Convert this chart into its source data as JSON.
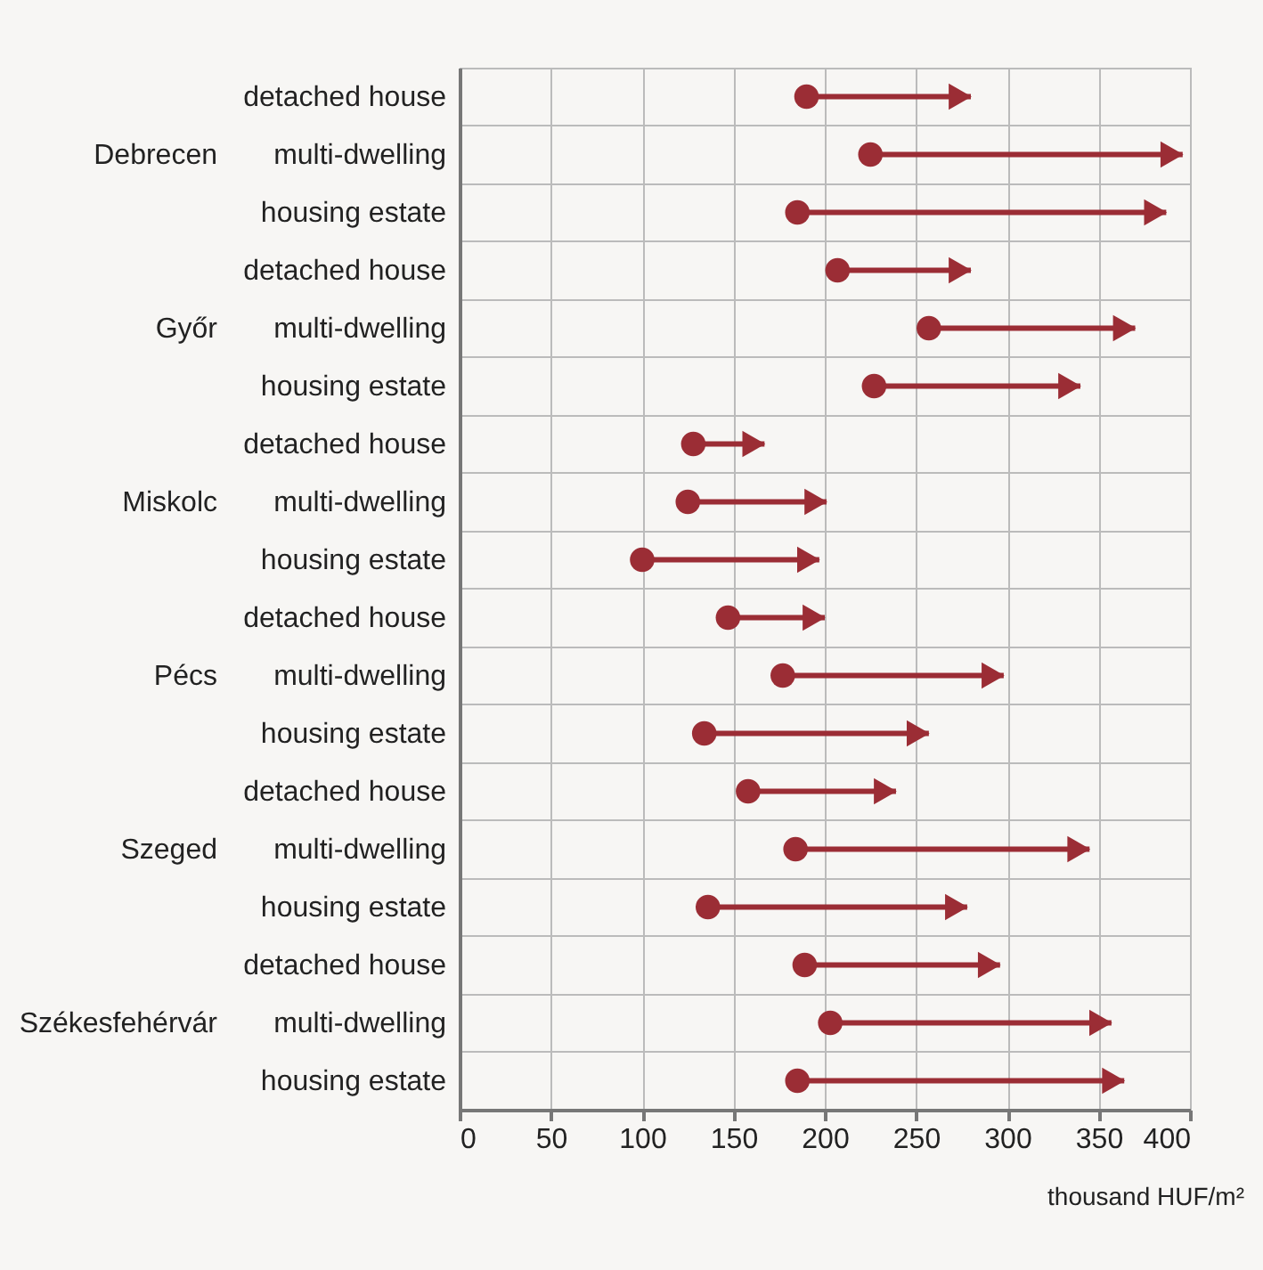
{
  "chart_data": {
    "type": "bar",
    "orientation": "horizontal",
    "categories": [
      "detached house",
      "multi-dwelling",
      "housing estate",
      "detached house",
      "multi-dwelling",
      "housing estate",
      "detached house",
      "multi-dwelling",
      "housing estate",
      "detached house",
      "multi-dwelling",
      "housing estate",
      "detached house",
      "multi-dwelling",
      "housing estate",
      "detached house",
      "multi-dwelling",
      "housing estate"
    ],
    "series": [
      {
        "color": "#9b2d35",
        "base": [
          190,
          225,
          185,
          207,
          257,
          227,
          128,
          125,
          100,
          147,
          177,
          134,
          158,
          184,
          136,
          189,
          203,
          185
        ],
        "values": [
          90,
          171,
          202,
          73,
          113,
          113,
          39,
          76,
          97,
          53,
          121,
          123,
          81,
          161,
          142,
          107,
          154,
          179
        ]
      },
      {
        "type": "scatter",
        "color": "#9b2d35",
        "marker": "circle",
        "values": [
          190,
          225,
          185,
          207,
          257,
          227,
          128,
          125,
          100,
          147,
          177,
          134,
          158,
          184,
          136,
          189,
          203,
          185
        ]
      }
    ],
    "annotations": [
      "Debrecen",
      "Győr",
      "Miskolc",
      "Pécs",
      "Szeged",
      "Székesfehérvár"
    ],
    "xlabel": "thousand HUF/m²",
    "xlim": [
      0,
      400
    ],
    "xticks": [
      0,
      50,
      100,
      150,
      200,
      250,
      300,
      350,
      400
    ],
    "grid": true
  }
}
